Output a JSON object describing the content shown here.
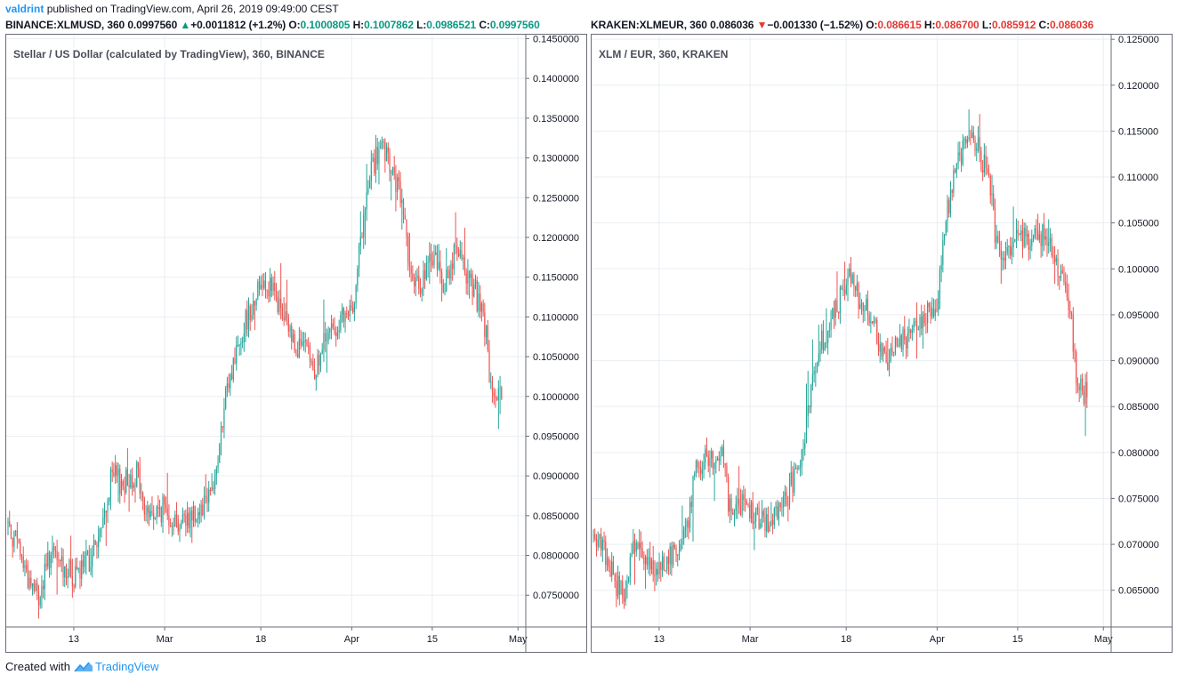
{
  "publish": {
    "user": "valdrint",
    "text": "published on TradingView.com, April 26, 2019 09:49:00 CEST"
  },
  "left_header": {
    "symbol": "BINANCE:XLMUSD, 360",
    "last": "0.0997560",
    "change_arrow": "▲",
    "change": "+0.0011812 (+1.2%)",
    "o_label": "O:",
    "o": "0.1000805",
    "h_label": "H:",
    "h": "0.1007862",
    "l_label": "L:",
    "l": "0.0986521",
    "c_label": "C:",
    "c": "0.0997560",
    "color": "#089981"
  },
  "right_header": {
    "symbol": "KRAKEN:XLMEUR, 360",
    "last": "0.086036",
    "change_arrow": "▼",
    "change": "−0.001330 (−1.52%)",
    "o_label": "O:",
    "o": "0.086615",
    "h_label": "H:",
    "h": "0.086700",
    "l_label": "L:",
    "l": "0.085912",
    "c_label": "C:",
    "c": "0.086036",
    "color": "#e53935"
  },
  "footer": {
    "created_with": "Created with",
    "brand": "TradingView"
  },
  "colors": {
    "up": "#26a69a",
    "down": "#ef5350",
    "grid": "#e9eef2",
    "axis": "#6a6d78"
  },
  "chart_data": [
    {
      "type": "candlestick",
      "title": "Stellar / US Dollar (calculated by TradingView), 360, BINANCE",
      "x_ticks": [
        "13",
        "Mar",
        "18",
        "Apr",
        "15",
        "May"
      ],
      "x_tick_pos": [
        0.13,
        0.305,
        0.49,
        0.665,
        0.82,
        0.985
      ],
      "y_ticks": [
        "0.0750000",
        "0.0800000",
        "0.0850000",
        "0.0900000",
        "0.0950000",
        "0.1000000",
        "0.1050000",
        "0.1100000",
        "0.1150000",
        "0.1200000",
        "0.1250000",
        "0.1300000",
        "0.1350000",
        "0.1400000",
        "0.1450000"
      ],
      "ylim": [
        0.071,
        0.1455
      ],
      "x_range": [
        "2019-02-03",
        "2019-04-26"
      ],
      "waypoints": [
        [
          0,
          0.084
        ],
        [
          0.02,
          0.081
        ],
        [
          0.04,
          0.077
        ],
        [
          0.06,
          0.0745
        ],
        [
          0.08,
          0.08
        ],
        [
          0.1,
          0.079
        ],
        [
          0.13,
          0.077
        ],
        [
          0.16,
          0.08
        ],
        [
          0.18,
          0.083
        ],
        [
          0.2,
          0.09
        ],
        [
          0.22,
          0.089
        ],
        [
          0.25,
          0.0905
        ],
        [
          0.26,
          0.086
        ],
        [
          0.28,
          0.085
        ],
        [
          0.3,
          0.086
        ],
        [
          0.33,
          0.084
        ],
        [
          0.37,
          0.086
        ],
        [
          0.4,
          0.09
        ],
        [
          0.42,
          0.1
        ],
        [
          0.44,
          0.106
        ],
        [
          0.46,
          0.11
        ],
        [
          0.49,
          0.115
        ],
        [
          0.51,
          0.113
        ],
        [
          0.53,
          0.11
        ],
        [
          0.55,
          0.107
        ],
        [
          0.57,
          0.106
        ],
        [
          0.59,
          0.103
        ],
        [
          0.61,
          0.107
        ],
        [
          0.63,
          0.109
        ],
        [
          0.66,
          0.11
        ],
        [
          0.68,
          0.12
        ],
        [
          0.7,
          0.129
        ],
        [
          0.72,
          0.131
        ],
        [
          0.74,
          0.128
        ],
        [
          0.76,
          0.124
        ],
        [
          0.78,
          0.113
        ],
        [
          0.8,
          0.115
        ],
        [
          0.82,
          0.118
        ],
        [
          0.84,
          0.114
        ],
        [
          0.86,
          0.118
        ],
        [
          0.88,
          0.116
        ],
        [
          0.9,
          0.113
        ],
        [
          0.92,
          0.108
        ],
        [
          0.93,
          0.1
        ],
        [
          0.95,
          0.0997
        ]
      ]
    },
    {
      "type": "candlestick",
      "title": "XLM / EUR, 360, KRAKEN",
      "x_ticks": [
        "13",
        "Mar",
        "18",
        "Apr",
        "15",
        "May"
      ],
      "x_tick_pos": [
        0.13,
        0.305,
        0.49,
        0.665,
        0.82,
        0.985
      ],
      "y_ticks": [
        "0.065000",
        "0.070000",
        "0.075000",
        "0.080000",
        "0.085000",
        "0.090000",
        "0.095000",
        "0.100000",
        "0.105000",
        "0.110000",
        "0.115000",
        "0.120000",
        "0.125000"
      ],
      "ylim": [
        0.061,
        0.1255
      ],
      "x_range": [
        "2019-02-03",
        "2019-04-26"
      ],
      "waypoints": [
        [
          0,
          0.071
        ],
        [
          0.02,
          0.069
        ],
        [
          0.04,
          0.066
        ],
        [
          0.06,
          0.064
        ],
        [
          0.08,
          0.07
        ],
        [
          0.1,
          0.069
        ],
        [
          0.13,
          0.067
        ],
        [
          0.16,
          0.07
        ],
        [
          0.18,
          0.072
        ],
        [
          0.2,
          0.079
        ],
        [
          0.22,
          0.079
        ],
        [
          0.25,
          0.08
        ],
        [
          0.26,
          0.074
        ],
        [
          0.28,
          0.074
        ],
        [
          0.3,
          0.074
        ],
        [
          0.33,
          0.072
        ],
        [
          0.37,
          0.075
        ],
        [
          0.4,
          0.079
        ],
        [
          0.42,
          0.088
        ],
        [
          0.44,
          0.092
        ],
        [
          0.46,
          0.095
        ],
        [
          0.49,
          0.099
        ],
        [
          0.51,
          0.097
        ],
        [
          0.53,
          0.095
        ],
        [
          0.55,
          0.092
        ],
        [
          0.57,
          0.09
        ],
        [
          0.59,
          0.092
        ],
        [
          0.61,
          0.093
        ],
        [
          0.63,
          0.094
        ],
        [
          0.66,
          0.096
        ],
        [
          0.68,
          0.106
        ],
        [
          0.7,
          0.112
        ],
        [
          0.72,
          0.114
        ],
        [
          0.74,
          0.113
        ],
        [
          0.76,
          0.11
        ],
        [
          0.78,
          0.101
        ],
        [
          0.8,
          0.102
        ],
        [
          0.82,
          0.104
        ],
        [
          0.84,
          0.102
        ],
        [
          0.86,
          0.104
        ],
        [
          0.88,
          0.103
        ],
        [
          0.9,
          0.099
        ],
        [
          0.92,
          0.094
        ],
        [
          0.93,
          0.088
        ],
        [
          0.95,
          0.086
        ]
      ]
    }
  ]
}
